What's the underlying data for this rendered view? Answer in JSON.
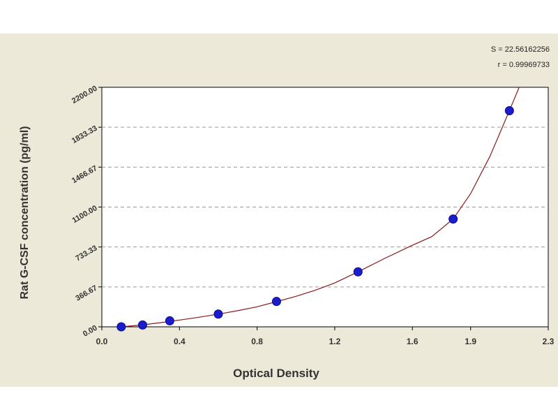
{
  "chart_data": {
    "type": "scatter",
    "title": "",
    "xlabel": "Optical Density",
    "ylabel": "Rat G-CSF concentration (pg/ml)",
    "xlim": [
      0.0,
      2.3
    ],
    "ylim": [
      0.0,
      2200.0
    ],
    "x_ticks": [
      {
        "value": 0.0,
        "label": "0.0"
      },
      {
        "value": 0.4,
        "label": "0.4"
      },
      {
        "value": 0.8,
        "label": "0.8"
      },
      {
        "value": 1.2,
        "label": "1.2"
      },
      {
        "value": 1.6,
        "label": "1.6"
      },
      {
        "value": 1.9,
        "label": "1.9"
      },
      {
        "value": 2.3,
        "label": "2.3"
      }
    ],
    "y_ticks": [
      {
        "value": 0.0,
        "label": "0.00"
      },
      {
        "value": 366.67,
        "label": "366.67"
      },
      {
        "value": 733.33,
        "label": "733.33"
      },
      {
        "value": 1100.0,
        "label": "1100.00"
      },
      {
        "value": 1466.67,
        "label": "1466.67"
      },
      {
        "value": 1833.33,
        "label": "1833.33"
      },
      {
        "value": 2200.0,
        "label": "2200.00"
      }
    ],
    "points": [
      {
        "x": 0.1,
        "y": 0
      },
      {
        "x": 0.21,
        "y": 17
      },
      {
        "x": 0.35,
        "y": 55
      },
      {
        "x": 0.6,
        "y": 117
      },
      {
        "x": 0.9,
        "y": 233
      },
      {
        "x": 1.32,
        "y": 505
      },
      {
        "x": 1.81,
        "y": 990
      },
      {
        "x": 2.1,
        "y": 1985
      }
    ],
    "curve": [
      [
        0.1,
        0
      ],
      [
        0.2,
        16
      ],
      [
        0.3,
        38
      ],
      [
        0.4,
        62
      ],
      [
        0.5,
        88
      ],
      [
        0.6,
        117
      ],
      [
        0.7,
        148
      ],
      [
        0.8,
        184
      ],
      [
        0.9,
        231
      ],
      [
        1.0,
        280
      ],
      [
        1.1,
        336
      ],
      [
        1.2,
        403
      ],
      [
        1.32,
        505
      ],
      [
        1.45,
        622
      ],
      [
        1.6,
        749
      ],
      [
        1.7,
        829
      ],
      [
        1.81,
        990
      ],
      [
        1.9,
        1223
      ],
      [
        2.0,
        1567
      ],
      [
        2.1,
        1985
      ],
      [
        2.15,
        2200
      ]
    ],
    "grid": true,
    "colors": {
      "panel": "#ece9d8",
      "plot_bg": "#ffffff",
      "grid": "#9a9a9a",
      "curve": "#8b1a1a",
      "point": "#1c1ccf"
    },
    "stats": {
      "s": "S = 22.56162256",
      "r": "r = 0.99969733"
    }
  }
}
